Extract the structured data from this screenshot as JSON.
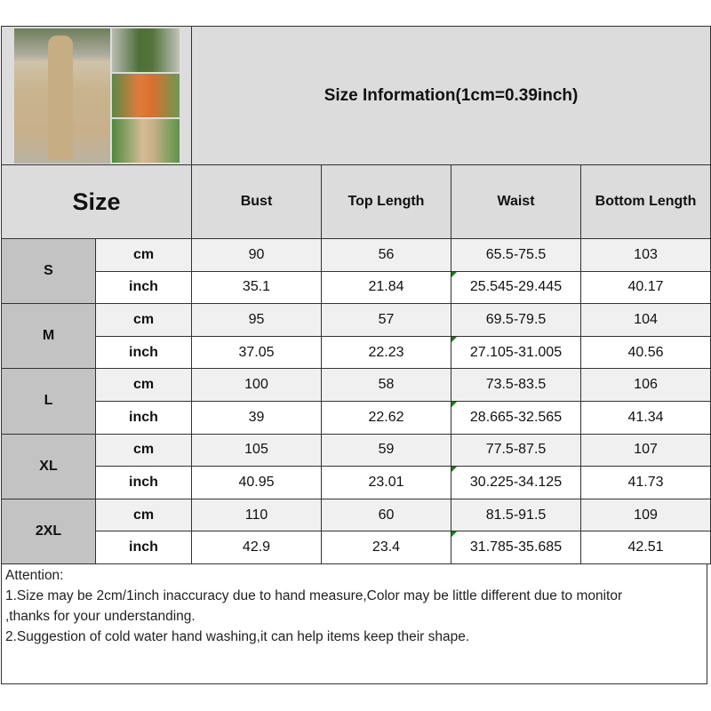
{
  "title": "Size Information(1cm=0.39inch)",
  "size_header": "Size",
  "columns": [
    "Bust",
    "Top Length",
    "Waist",
    "Bottom Length"
  ],
  "units": {
    "cm": "cm",
    "inch": "inch"
  },
  "rows": [
    {
      "size": "S",
      "cm": [
        "90",
        "56",
        "65.5-75.5",
        "103"
      ],
      "inch": [
        "35.1",
        "21.84",
        "25.545-29.445",
        "40.17"
      ]
    },
    {
      "size": "M",
      "cm": [
        "95",
        "57",
        "69.5-79.5",
        "104"
      ],
      "inch": [
        "37.05",
        "22.23",
        "27.105-31.005",
        "40.56"
      ]
    },
    {
      "size": "L",
      "cm": [
        "100",
        "58",
        "73.5-83.5",
        "106"
      ],
      "inch": [
        "39",
        "22.62",
        "28.665-32.565",
        "41.34"
      ]
    },
    {
      "size": "XL",
      "cm": [
        "105",
        "59",
        "77.5-87.5",
        "107"
      ],
      "inch": [
        "40.95",
        "23.01",
        "30.225-34.125",
        "41.73"
      ]
    },
    {
      "size": "2XL",
      "cm": [
        "110",
        "60",
        "81.5-91.5",
        "109"
      ],
      "inch": [
        "42.9",
        "23.4",
        "31.785-35.685",
        "42.51"
      ]
    }
  ],
  "attention": [
    "Attention:",
    "1.Size may be 2cm/1inch inaccuracy due to hand measure,Color may be little different due to monitor",
    ",thanks for your understanding.",
    "2.Suggestion of cold water hand washing,it can help items keep their shape."
  ],
  "colors": {
    "header_bg": "#dcdcdc",
    "size_bg": "#c3c3c3",
    "cm_row_bg": "#f0f0f0"
  }
}
